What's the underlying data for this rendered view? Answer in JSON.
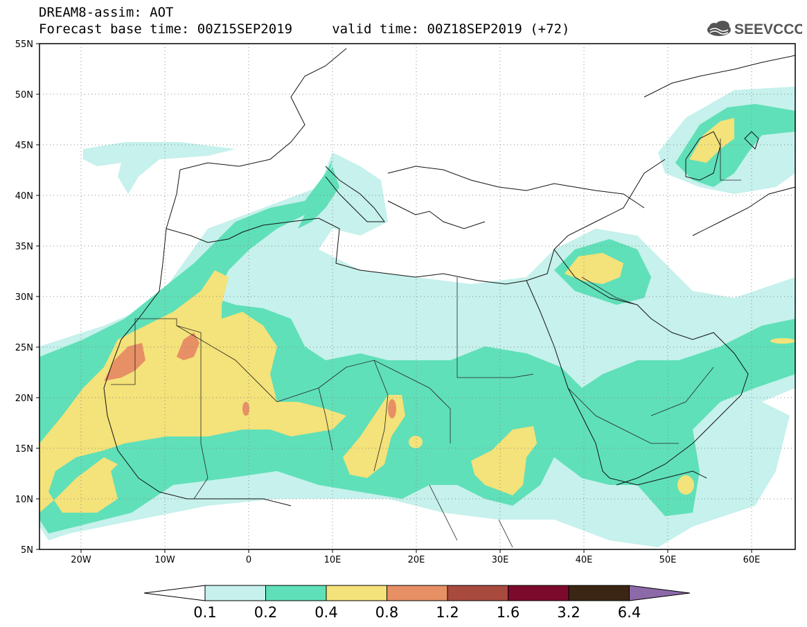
{
  "title_line1": "DREAM8-assim: AOT",
  "title_line2": "Forecast base time: 00Z15SEP2019     valid time: 00Z18SEP2019 (+72)",
  "logo_text": "SEEVCCC",
  "lat_labels": [
    "55N",
    "50N",
    "45N",
    "40N",
    "35N",
    "30N",
    "25N",
    "20N",
    "15N",
    "10N",
    "5N"
  ],
  "lon_labels": [
    "20W",
    "10W",
    "0",
    "10E",
    "20E",
    "30E",
    "40E",
    "50E",
    "60E"
  ],
  "colorbar": {
    "labels": [
      "0.1",
      "0.2",
      "0.4",
      "0.8",
      "1.2",
      "1.6",
      "3.2",
      "6.4"
    ],
    "colors": [
      "#ffffff",
      "#c6f1ec",
      "#5fe0b8",
      "#f4e27a",
      "#e78f65",
      "#a94a3e",
      "#7b0a2c",
      "#3b2514",
      "#8c6aa8"
    ]
  }
}
